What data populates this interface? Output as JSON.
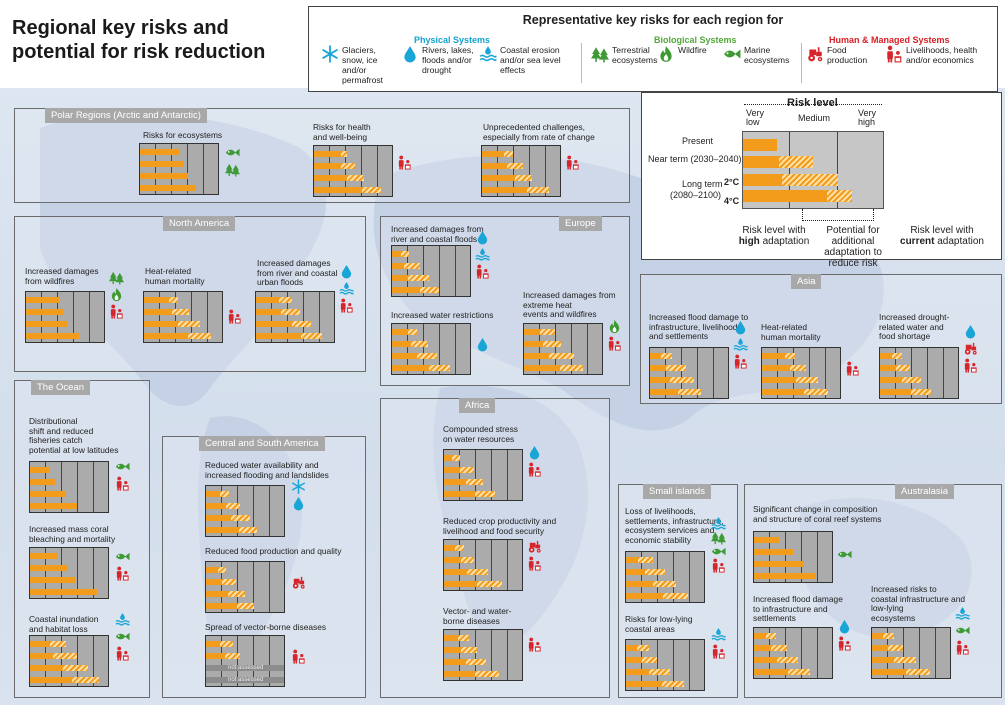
{
  "title": "Regional key risks and potential for risk reduction",
  "legend": {
    "title": "Representative key risks for each region for",
    "groups": [
      {
        "name": "Physical Systems",
        "color": "#13a3cf"
      },
      {
        "name": "Biological Systems",
        "color": "#53a93a"
      },
      {
        "name": "Human & Managed Systems",
        "color": "#d72027"
      }
    ],
    "items": [
      {
        "icon": "snowflake-icon",
        "text": [
          "Glaciers,",
          "snow, ice",
          "and/or",
          "permafrost"
        ]
      },
      {
        "icon": "water-drop-icon",
        "text": [
          "Rivers, lakes,",
          "floods and/or",
          "drought"
        ]
      },
      {
        "icon": "waves-icon",
        "text": [
          "Coastal erosion",
          "and/or sea level",
          "effects"
        ]
      },
      {
        "icon": "trees-icon",
        "text": [
          "Terrestrial",
          "ecosystems"
        ]
      },
      {
        "icon": "wildfire-icon",
        "text": [
          "Wildfire"
        ]
      },
      {
        "icon": "fish-icon",
        "text": [
          "Marine",
          "ecosystems"
        ]
      },
      {
        "icon": "tractor-icon",
        "text": [
          "Food",
          "production"
        ]
      },
      {
        "icon": "people-icon",
        "text": [
          "Livelihoods, health",
          "and/or economics"
        ]
      }
    ]
  },
  "risk_key": {
    "title": "Risk level",
    "levels": [
      "Very low",
      "Medium",
      "Very high"
    ],
    "rows": [
      {
        "label": "Present",
        "value": 1.2,
        "potential": 0
      },
      {
        "label": "Near term (2030–2040)",
        "value": 1.3,
        "potential": 1.2
      },
      {
        "label": "Long term (2080–2100)",
        "value": 1.4,
        "potential": 2.0
      },
      {
        "label": "4°C",
        "value": 3.0,
        "potential": 0.9
      }
    ],
    "long_term_line1": "Long term",
    "long_term_line2": "(2080–2100)",
    "temp_2": "2°C",
    "temp_4": "4°C",
    "notes": [
      {
        "pre": "Risk level with",
        "bold": "high",
        "post": " adaptation"
      },
      {
        "pre": "Potential for",
        "lines": [
          "additional",
          "adaptation to",
          "reduce risk"
        ]
      },
      {
        "pre": "Risk level with",
        "bold": "current",
        "post": " adaptation"
      }
    ]
  },
  "chart_data": {
    "type": "table",
    "scale": {
      "min": 0,
      "max": 5,
      "labels": [
        "Very low",
        "Medium",
        "Very high"
      ]
    },
    "bar_order": [
      "Present",
      "Near term (2030–2040)",
      "Long term 2°C",
      "Long term 4°C"
    ],
    "regions": [
      {
        "name": "Polar Regions (Arctic and Antarctic)",
        "risks": [
          {
            "label": [
              "Risks for ecosystems"
            ],
            "icons": [
              "fish-icon",
              "trees-icon"
            ],
            "bars": [
              [
                2.5,
                0
              ],
              [
                2.8,
                0
              ],
              [
                3.1,
                0
              ],
              [
                3.6,
                0
              ]
            ]
          },
          {
            "label": [
              "Risks for health",
              "and well-being"
            ],
            "icons": [
              "people-icon"
            ],
            "bars": [
              [
                1.7,
                0.4
              ],
              [
                1.7,
                0.9
              ],
              [
                2.1,
                1.1
              ],
              [
                3.1,
                1.2
              ]
            ]
          },
          {
            "label": [
              "Unprecedented challenges,",
              "especially from rate of change"
            ],
            "icons": [
              "people-icon"
            ],
            "bars": [
              [
                1.4,
                0.6
              ],
              [
                1.6,
                1.0
              ],
              [
                2.1,
                1.1
              ],
              [
                2.9,
                1.4
              ]
            ]
          }
        ]
      },
      {
        "name": "North America",
        "risks": [
          {
            "label": [
              "Increased damages",
              "from wildfires"
            ],
            "icons": [
              "trees-icon",
              "wildfire-icon",
              "people-icon"
            ],
            "bars": [
              [
                2.1,
                0
              ],
              [
                2.4,
                0
              ],
              [
                2.6,
                0
              ],
              [
                3.4,
                0
              ]
            ]
          },
          {
            "label": [
              "Heat-related",
              "human mortality"
            ],
            "icons": [
              "people-icon"
            ],
            "bars": [
              [
                1.6,
                0.6
              ],
              [
                1.8,
                1.1
              ],
              [
                2.2,
                1.4
              ],
              [
                2.8,
                1.5
              ]
            ]
          },
          {
            "label": [
              "Increased damages",
              "from river and coastal",
              "urban floods"
            ],
            "icons": [
              "water-drop-icon",
              "waves-icon",
              "people-icon"
            ],
            "bars": [
              [
                1.5,
                0.8
              ],
              [
                1.6,
                1.2
              ],
              [
                2.3,
                1.2
              ],
              [
                2.9,
                1.3
              ]
            ]
          }
        ]
      },
      {
        "name": "Europe",
        "risks": [
          {
            "label": [
              "Increased damages from",
              "river and coastal floods"
            ],
            "icons": [
              "water-drop-icon",
              "waves-icon",
              "people-icon"
            ],
            "bars": [
              [
                0.6,
                0.5
              ],
              [
                0.8,
                1.0
              ],
              [
                1.0,
                1.4
              ],
              [
                1.8,
                1.2
              ]
            ]
          },
          {
            "label": [
              "Increased water restrictions"
            ],
            "icons": [
              "water-drop-icon"
            ],
            "bars": [
              [
                1.0,
                0.6
              ],
              [
                1.2,
                1.1
              ],
              [
                1.6,
                1.3
              ],
              [
                2.4,
                1.3
              ]
            ]
          },
          {
            "label": [
              "Increased damages from",
              "extreme heat",
              "events and wildfires"
            ],
            "icons": [
              "wildfire-icon",
              "people-icon"
            ],
            "bars": [
              [
                1.0,
                1.0
              ],
              [
                1.2,
                1.2
              ],
              [
                1.6,
                1.6
              ],
              [
                2.3,
                1.5
              ]
            ]
          }
        ]
      },
      {
        "name": "Asia",
        "risks": [
          {
            "label": [
              "Increased flood damage to",
              "infrastructure, livelihoods",
              "and settlements"
            ],
            "icons": [
              "water-drop-icon",
              "waves-icon",
              "people-icon"
            ],
            "bars": [
              [
                0.7,
                0.7
              ],
              [
                1.0,
                1.3
              ],
              [
                1.3,
                1.5
              ],
              [
                1.8,
                1.5
              ]
            ]
          },
          {
            "label": [
              "Heat-related",
              "human mortality"
            ],
            "icons": [
              "people-icon"
            ],
            "bars": [
              [
                1.5,
                0.6
              ],
              [
                1.8,
                1.0
              ],
              [
                2.2,
                1.4
              ],
              [
                2.7,
                1.5
              ]
            ]
          },
          {
            "label": [
              "Increased drought-",
              "related water and",
              "food shortage"
            ],
            "icons": [
              "water-drop-icon",
              "tractor-icon",
              "people-icon"
            ],
            "bars": [
              [
                0.8,
                0.6
              ],
              [
                1.0,
                0.9
              ],
              [
                1.4,
                1.2
              ],
              [
                2.0,
                1.3
              ]
            ]
          }
        ]
      },
      {
        "name": "The Ocean",
        "risks": [
          {
            "label": [
              "Distributional",
              "shift and reduced",
              "fisheries catch",
              "potential at low latitudes"
            ],
            "icons": [
              "fish-icon",
              "people-icon"
            ],
            "bars": [
              [
                1.2,
                0
              ],
              [
                1.6,
                0
              ],
              [
                2.3,
                0
              ],
              [
                3.0,
                0
              ]
            ]
          },
          {
            "label": [
              "Increased mass coral",
              "bleaching and mortality"
            ],
            "icons": [
              "fish-icon",
              "people-icon"
            ],
            "bars": [
              [
                1.8,
                0
              ],
              [
                2.4,
                0
              ],
              [
                2.9,
                0
              ],
              [
                4.3,
                0
              ]
            ]
          },
          {
            "label": [
              "Coastal inundation",
              "and habitat loss"
            ],
            "icons": [
              "waves-icon",
              "fish-icon",
              "people-icon"
            ],
            "bars": [
              [
                1.3,
                1.0
              ],
              [
                1.5,
                1.5
              ],
              [
                2.1,
                1.6
              ],
              [
                2.7,
                1.7
              ]
            ]
          }
        ]
      },
      {
        "name": "Central and South America",
        "risks": [
          {
            "label": [
              "Reduced water availability and",
              "increased flooding and landslides"
            ],
            "icons": [
              "snowflake-icon",
              "water-drop-icon"
            ],
            "bars": [
              [
                0.9,
                0.6
              ],
              [
                1.3,
                0.9
              ],
              [
                1.6,
                1.2
              ],
              [
                2.1,
                1.2
              ]
            ]
          },
          {
            "label": [
              "Reduced food production and quality"
            ],
            "icons": [
              "tractor-icon"
            ],
            "bars": [
              [
                0.8,
                0.5
              ],
              [
                1.0,
                0.9
              ],
              [
                1.4,
                1.1
              ],
              [
                2.0,
                1.1
              ]
            ]
          },
          {
            "label": [
              "Spread of vector-borne diseases"
            ],
            "icons": [
              "people-icon"
            ],
            "bars": [
              [
                0.9,
                0.8
              ],
              [
                1.2,
                1.0
              ],
              [
                0,
                0,
                "not assessed"
              ],
              [
                0,
                0,
                "not assessed"
              ]
            ]
          }
        ]
      },
      {
        "name": "Africa",
        "risks": [
          {
            "label": [
              "Compounded stress",
              "on water resources"
            ],
            "icons": [
              "water-drop-icon",
              "people-icon"
            ],
            "bars": [
              [
                0.5,
                0.5
              ],
              [
                1.0,
                0.9
              ],
              [
                1.4,
                1.1
              ],
              [
                2.0,
                1.3
              ]
            ]
          },
          {
            "label": [
              "Reduced crop productivity and",
              "livelihood and food security"
            ],
            "icons": [
              "tractor-icon",
              "people-icon"
            ],
            "bars": [
              [
                0.7,
                0.6
              ],
              [
                1.1,
                0.8
              ],
              [
                1.5,
                1.3
              ],
              [
                2.1,
                1.6
              ]
            ]
          },
          {
            "label": [
              "Vector- and water-",
              "borne diseases"
            ],
            "icons": [
              "people-icon"
            ],
            "bars": [
              [
                0.9,
                0.7
              ],
              [
                1.1,
                1.0
              ],
              [
                1.4,
                1.3
              ],
              [
                2.0,
                1.5
              ]
            ]
          }
        ]
      },
      {
        "name": "Small islands",
        "risks": [
          {
            "label": [
              "Loss of livelihoods,",
              "settlements, infrastructure,",
              "ecosystem services and",
              "economic stability"
            ],
            "icons": [
              "waves-icon",
              "trees-icon",
              "fish-icon",
              "people-icon"
            ],
            "bars": [
              [
                0.8,
                0.9
              ],
              [
                1.2,
                1.3
              ],
              [
                1.7,
                1.5
              ],
              [
                2.4,
                1.6
              ]
            ]
          },
          {
            "label": [
              "Risks for low-lying",
              "coastal areas"
            ],
            "icons": [
              "waves-icon",
              "people-icon"
            ],
            "bars": [
              [
                0.7,
                0.8
              ],
              [
                1.0,
                1.0
              ],
              [
                1.5,
                1.3
              ],
              [
                2.3,
                1.4
              ]
            ]
          }
        ]
      },
      {
        "name": "Australasia",
        "risks": [
          {
            "label": [
              "Significant change in composition",
              "and structure of coral reef systems"
            ],
            "icons": [
              "fish-icon"
            ],
            "bars": [
              [
                1.6,
                0
              ],
              [
                2.5,
                0
              ],
              [
                3.2,
                0
              ],
              [
                4.0,
                0
              ]
            ]
          },
          {
            "label": [
              "Increased flood damage",
              "to infrastructure and",
              "settlements"
            ],
            "icons": [
              "water-drop-icon",
              "people-icon"
            ],
            "bars": [
              [
                0.8,
                0.6
              ],
              [
                1.1,
                1.0
              ],
              [
                1.5,
                1.3
              ],
              [
                2.2,
                1.4
              ]
            ]
          },
          {
            "label": [
              "Increased risks to",
              "coastal infrastructure and",
              "low-lying",
              "ecosystems"
            ],
            "icons": [
              "waves-icon",
              "fish-icon",
              "people-icon"
            ],
            "bars": [
              [
                0.7,
                0.7
              ],
              [
                1.0,
                1.0
              ],
              [
                1.4,
                1.4
              ],
              [
                2.2,
                1.5
              ]
            ]
          }
        ]
      }
    ]
  }
}
